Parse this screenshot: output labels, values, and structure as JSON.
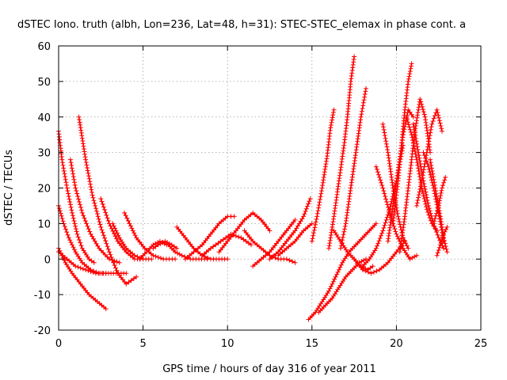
{
  "chart_data": {
    "type": "line",
    "title": "dSTEC Iono. truth (albh, Lon=236, Lat=48, h=31): STEC-STEC_elemax in phase cont. a",
    "xlabel": "GPS time / hours of day 316 of year 2011",
    "ylabel": "dSTEC  / TECUs",
    "xlim": [
      0,
      25
    ],
    "ylim": [
      -20,
      60
    ],
    "xticks": [
      0,
      5,
      10,
      15,
      20,
      25
    ],
    "yticks": [
      -20,
      -10,
      0,
      10,
      20,
      30,
      40,
      50,
      60
    ],
    "grid": true,
    "marker": "plus",
    "color": "#ff0000",
    "series": [
      {
        "x": [
          0.0,
          0.2,
          0.5,
          0.8,
          1.1,
          1.4,
          1.8,
          2.1
        ],
        "y": [
          36,
          28,
          20,
          13,
          7,
          3,
          0,
          -1
        ]
      },
      {
        "x": [
          0.0,
          0.3,
          0.6,
          1.0,
          1.4,
          1.9,
          2.4,
          2.8
        ],
        "y": [
          15,
          10,
          6,
          2,
          -1,
          -3,
          -4,
          -4
        ]
      },
      {
        "x": [
          0.0,
          0.4,
          0.8,
          1.3,
          1.8,
          2.3,
          2.8
        ],
        "y": [
          3,
          -1,
          -4,
          -7,
          -10,
          -12,
          -14
        ]
      },
      {
        "x": [
          0.0,
          0.5,
          1.0,
          1.6,
          2.2,
          2.8,
          3.4,
          4.0
        ],
        "y": [
          2,
          0,
          -2,
          -3,
          -4,
          -4,
          -4,
          -4
        ]
      },
      {
        "x": [
          0.7,
          1.0,
          1.4,
          1.9,
          2.4,
          3.0,
          3.6
        ],
        "y": [
          28,
          20,
          13,
          7,
          3,
          0,
          -1
        ]
      },
      {
        "x": [
          1.2,
          1.6,
          2.0,
          2.5,
          3.0,
          3.5,
          4.0,
          4.6
        ],
        "y": [
          40,
          28,
          18,
          9,
          2,
          -4,
          -7,
          -5
        ]
      },
      {
        "x": [
          2.5,
          3.0,
          3.5,
          4.0,
          4.5,
          5.0
        ],
        "y": [
          17,
          10,
          5,
          2,
          0,
          0
        ]
      },
      {
        "x": [
          3.2,
          3.6,
          4.0,
          4.5,
          5.0,
          5.5
        ],
        "y": [
          10,
          6,
          3,
          1,
          0,
          0
        ]
      },
      {
        "x": [
          3.9,
          4.2,
          4.6,
          5.1,
          5.6,
          6.2,
          6.9
        ],
        "y": [
          13,
          10,
          6,
          3,
          1,
          0,
          0
        ]
      },
      {
        "x": [
          4.8,
          5.2,
          5.6,
          6.0,
          6.4
        ],
        "y": [
          0,
          2,
          4,
          5,
          4
        ]
      },
      {
        "x": [
          5.6,
          5.9,
          6.3,
          6.7,
          7.0
        ],
        "y": [
          3,
          4,
          5,
          4,
          3
        ]
      },
      {
        "x": [
          6.5,
          6.9,
          7.3,
          7.8,
          8.3,
          8.8
        ],
        "y": [
          4,
          2,
          1,
          0,
          0,
          0
        ]
      },
      {
        "x": [
          7.0,
          7.5,
          8.0,
          8.5,
          9.0,
          9.5,
          10.0
        ],
        "y": [
          9,
          6,
          3,
          1,
          0,
          0,
          0
        ]
      },
      {
        "x": [
          7.5,
          8.0,
          8.5,
          9.0,
          9.5,
          10.0,
          10.4
        ],
        "y": [
          0,
          2,
          4,
          7,
          10,
          12,
          12
        ]
      },
      {
        "x": [
          8.5,
          9.0,
          9.6,
          10.2,
          10.8,
          11.4
        ],
        "y": [
          1,
          3,
          5,
          7,
          6,
          4
        ]
      },
      {
        "x": [
          9.5,
          10.0,
          10.5,
          11.0,
          11.5,
          12.0,
          12.5
        ],
        "y": [
          2,
          5,
          8,
          11,
          13,
          11,
          8
        ]
      },
      {
        "x": [
          11.0,
          11.5,
          12.0,
          12.5,
          13.0,
          13.5,
          14.0
        ],
        "y": [
          8,
          5,
          3,
          1,
          0,
          0,
          -1
        ]
      },
      {
        "x": [
          11.5,
          12.0,
          12.5,
          13.0,
          13.5,
          14.0
        ],
        "y": [
          -2,
          0,
          2,
          5,
          8,
          11
        ]
      },
      {
        "x": [
          12.5,
          13.0,
          13.5,
          14.0,
          14.5,
          14.9
        ],
        "y": [
          0,
          2,
          5,
          8,
          12,
          17
        ]
      },
      {
        "x": [
          13.0,
          13.5,
          14.0,
          14.5,
          15.0
        ],
        "y": [
          1,
          3,
          5,
          8,
          10
        ]
      },
      {
        "x": [
          14.8,
          15.2,
          15.6,
          16.0,
          16.4,
          16.8,
          17.2,
          17.6,
          18.0,
          18.4,
          18.8
        ],
        "y": [
          -17,
          -15,
          -12,
          -9,
          -5,
          -1,
          2,
          4,
          6,
          8,
          10
        ]
      },
      {
        "x": [
          15.0,
          15.3,
          15.6,
          15.9,
          16.1,
          16.3
        ],
        "y": [
          5,
          12,
          20,
          29,
          37,
          42
        ]
      },
      {
        "x": [
          15.4,
          15.8,
          16.2,
          16.6,
          17.0,
          17.4,
          17.8,
          18.2
        ],
        "y": [
          -15,
          -13,
          -11,
          -8,
          -5,
          -3,
          -1,
          0
        ]
      },
      {
        "x": [
          16.0,
          16.3,
          16.6,
          16.9,
          17.1,
          17.3,
          17.5
        ],
        "y": [
          3,
          12,
          22,
          32,
          40,
          50,
          57
        ]
      },
      {
        "x": [
          16.3,
          16.7,
          17.1,
          17.5,
          17.9,
          18.3,
          18.6
        ],
        "y": [
          8,
          5,
          2,
          0,
          -2,
          -3,
          -2
        ]
      },
      {
        "x": [
          16.7,
          17.0,
          17.3,
          17.6,
          17.9,
          18.2
        ],
        "y": [
          3,
          10,
          20,
          30,
          40,
          48
        ]
      },
      {
        "x": [
          17.5,
          18.0,
          18.5,
          19.0,
          19.5,
          20.0,
          20.5
        ],
        "y": [
          0,
          -3,
          -4,
          -3,
          -1,
          2,
          5
        ]
      },
      {
        "x": [
          18.0,
          18.4,
          18.8,
          19.2,
          19.6,
          20.0,
          20.4
        ],
        "y": [
          -2,
          0,
          3,
          8,
          14,
          22,
          32
        ]
      },
      {
        "x": [
          18.8,
          19.2,
          19.6,
          20.0,
          20.4,
          20.8,
          21.2
        ],
        "y": [
          26,
          20,
          13,
          7,
          3,
          0,
          1
        ]
      },
      {
        "x": [
          19.2,
          19.5,
          19.8,
          20.1,
          20.4,
          20.7
        ],
        "y": [
          38,
          30,
          20,
          12,
          6,
          3
        ]
      },
      {
        "x": [
          19.5,
          19.8,
          20.1,
          20.4,
          20.7,
          21.0
        ],
        "y": [
          5,
          15,
          25,
          35,
          42,
          40
        ]
      },
      {
        "x": [
          19.8,
          20.1,
          20.3,
          20.5,
          20.7,
          20.9
        ],
        "y": [
          10,
          22,
          32,
          42,
          50,
          55
        ]
      },
      {
        "x": [
          20.2,
          20.5,
          20.8,
          21.1,
          21.4,
          21.7,
          22.0
        ],
        "y": [
          2,
          12,
          24,
          36,
          45,
          40,
          30
        ]
      },
      {
        "x": [
          20.6,
          20.9,
          21.2,
          21.5,
          21.8,
          22.1,
          22.4
        ],
        "y": [
          40,
          35,
          28,
          20,
          14,
          10,
          8
        ]
      },
      {
        "x": [
          21.0,
          21.3,
          21.6,
          21.9,
          22.2,
          22.5,
          22.8
        ],
        "y": [
          38,
          30,
          22,
          15,
          10,
          6,
          3
        ]
      },
      {
        "x": [
          21.2,
          21.5,
          21.8,
          22.1,
          22.4,
          22.7
        ],
        "y": [
          15,
          22,
          30,
          38,
          42,
          36
        ]
      },
      {
        "x": [
          21.6,
          21.9,
          22.2,
          22.5,
          22.8
        ],
        "y": [
          30,
          26,
          20,
          13,
          5
        ]
      },
      {
        "x": [
          22.0,
          22.3,
          22.6,
          22.8,
          23.0
        ],
        "y": [
          28,
          20,
          12,
          6,
          2
        ]
      },
      {
        "x": [
          22.2,
          22.5,
          22.7,
          22.9
        ],
        "y": [
          10,
          15,
          20,
          23
        ]
      },
      {
        "x": [
          22.4,
          22.6,
          22.8,
          23.0
        ],
        "y": [
          1,
          4,
          7,
          9
        ]
      }
    ]
  }
}
